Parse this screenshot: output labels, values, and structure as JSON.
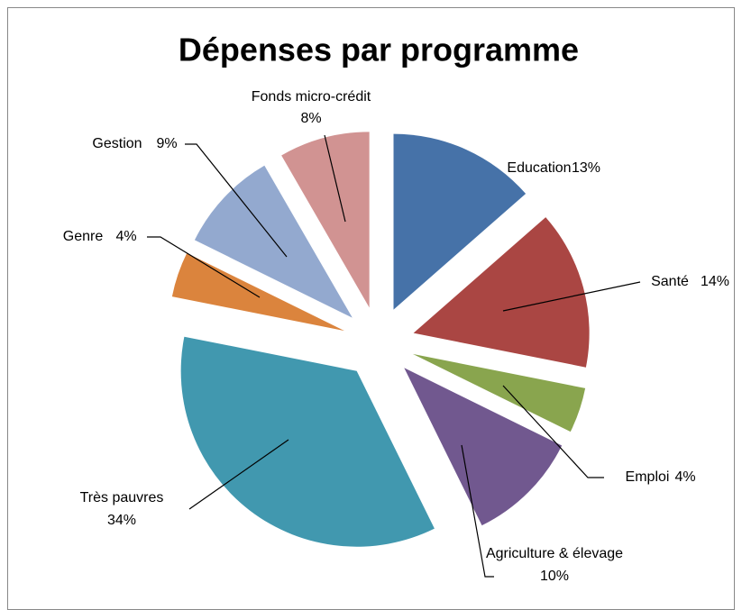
{
  "chart_data": {
    "type": "pie",
    "title": "Dépenses par programme",
    "categories": [
      "Education",
      "Santé",
      "Emploi",
      "Agriculture & élevage",
      "Très pauvres",
      "Genre",
      "Gestion",
      "Fonds micro-crédit"
    ],
    "values": [
      13,
      14,
      4,
      10,
      34,
      4,
      9,
      8
    ],
    "value_labels": [
      "13%",
      "14%",
      "4%",
      "10%",
      "34%",
      "4%",
      "9%",
      "8%"
    ],
    "colors": [
      "#4672a8",
      "#aa4643",
      "#89a54e",
      "#71588f",
      "#4198af",
      "#db843d",
      "#93a9cf",
      "#d19392"
    ]
  }
}
